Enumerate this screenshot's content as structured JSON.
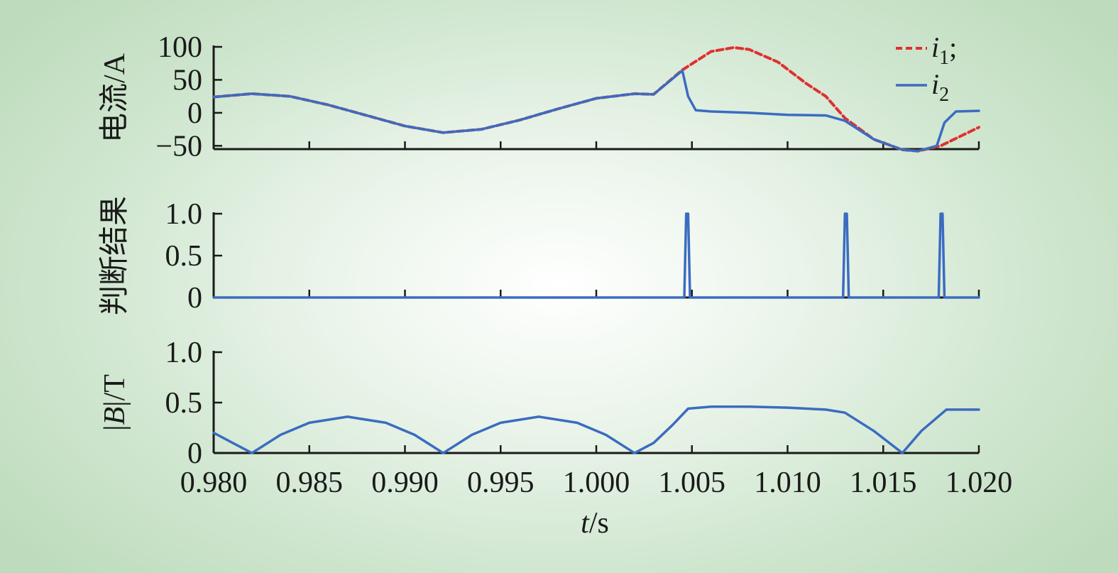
{
  "colors": {
    "i1": "#e03030",
    "i2": "#3b6cc0",
    "axis": "#1a1a1a"
  },
  "xlabel": {
    "var": "t",
    "unit": "/s"
  },
  "chart_data": [
    {
      "type": "line",
      "ylabel": "电流/A",
      "xlim": [
        0.98,
        1.02
      ],
      "ylim": [
        -55,
        100
      ],
      "yticks": [
        -50,
        0,
        50,
        100
      ],
      "ytick_labels": [
        "−50",
        "0",
        "50",
        "100"
      ],
      "legend": {
        "placement": "top-right",
        "entries": [
          {
            "var": "i",
            "sub": "1",
            "suffix": ";"
          },
          {
            "var": "i",
            "sub": "2",
            "suffix": ""
          }
        ]
      },
      "series": [
        {
          "name": "i1",
          "style": "dashed",
          "x": [
            0.98,
            0.982,
            0.984,
            0.986,
            0.988,
            0.99,
            0.992,
            0.994,
            0.996,
            0.998,
            1.0,
            1.002,
            1.003,
            1.0045,
            1.006,
            1.0072,
            1.008,
            1.0095,
            1.011,
            1.012,
            1.013,
            1.0145,
            1.016,
            1.0168,
            1.018,
            1.02
          ],
          "y": [
            24,
            29,
            25,
            12,
            -4,
            -20,
            -30,
            -25,
            -11,
            6,
            22,
            29,
            28,
            65,
            93,
            99,
            96,
            77,
            44,
            25,
            -8,
            -40,
            -56,
            -58,
            -50,
            -22
          ]
        },
        {
          "name": "i2",
          "style": "solid",
          "x": [
            0.98,
            0.982,
            0.984,
            0.986,
            0.988,
            0.99,
            0.992,
            0.994,
            0.996,
            0.998,
            1.0,
            1.002,
            1.003,
            1.0045,
            1.0048,
            1.0052,
            1.006,
            1.008,
            1.01,
            1.012,
            1.013,
            1.0145,
            1.016,
            1.0168,
            1.0178,
            1.0182,
            1.0188,
            1.02
          ],
          "y": [
            24,
            29,
            25,
            12,
            -4,
            -20,
            -30,
            -25,
            -11,
            6,
            22,
            29,
            28,
            64,
            25,
            4,
            2,
            0,
            -3,
            -4,
            -12,
            -40,
            -56,
            -58,
            -50,
            -15,
            2,
            3
          ]
        }
      ]
    },
    {
      "type": "line",
      "ylabel": "判断结果",
      "xlim": [
        0.98,
        1.02
      ],
      "ylim": [
        0,
        1.0
      ],
      "yticks": [
        0,
        0.5,
        1.0
      ],
      "ytick_labels": [
        "0",
        "0.5",
        "1.0"
      ],
      "series": [
        {
          "name": "i2",
          "style": "solid",
          "x": [
            0.98,
            1.0046,
            1.0047,
            1.0048,
            1.0049,
            1.0129,
            1.013,
            1.0131,
            1.0132,
            1.0179,
            1.018,
            1.0181,
            1.0182,
            1.02
          ],
          "y": [
            0,
            0,
            1,
            1,
            0,
            0,
            1,
            1,
            0,
            0,
            1,
            1,
            0,
            0
          ]
        }
      ]
    },
    {
      "type": "line",
      "ylabel": "|B|/T",
      "xlim": [
        0.98,
        1.02
      ],
      "ylim": [
        0,
        1.0
      ],
      "yticks": [
        0,
        0.5,
        1.0
      ],
      "ytick_labels": [
        "0",
        "0.5",
        "1.0"
      ],
      "xticks": [
        0.98,
        0.985,
        0.99,
        0.995,
        1.0,
        1.005,
        1.01,
        1.015,
        1.02
      ],
      "xtick_labels": [
        "0.980",
        "0.985",
        "0.990",
        "0.995",
        "1.000",
        "1.005",
        "1.010",
        "1.015",
        "1.020"
      ],
      "series": [
        {
          "name": "i2",
          "style": "solid",
          "x": [
            0.98,
            0.981,
            0.982,
            0.9835,
            0.985,
            0.987,
            0.989,
            0.9905,
            0.992,
            0.9935,
            0.995,
            0.997,
            0.999,
            1.0005,
            1.002,
            1.003,
            1.004,
            1.0048,
            1.006,
            1.008,
            1.01,
            1.012,
            1.013,
            1.0145,
            1.016,
            1.017,
            1.0183,
            1.02
          ],
          "y": [
            0.2,
            0.1,
            0.0,
            0.18,
            0.3,
            0.36,
            0.3,
            0.18,
            0.0,
            0.18,
            0.3,
            0.36,
            0.3,
            0.18,
            0.0,
            0.1,
            0.28,
            0.44,
            0.46,
            0.46,
            0.45,
            0.43,
            0.4,
            0.22,
            0.0,
            0.22,
            0.43,
            0.43
          ]
        }
      ]
    }
  ]
}
